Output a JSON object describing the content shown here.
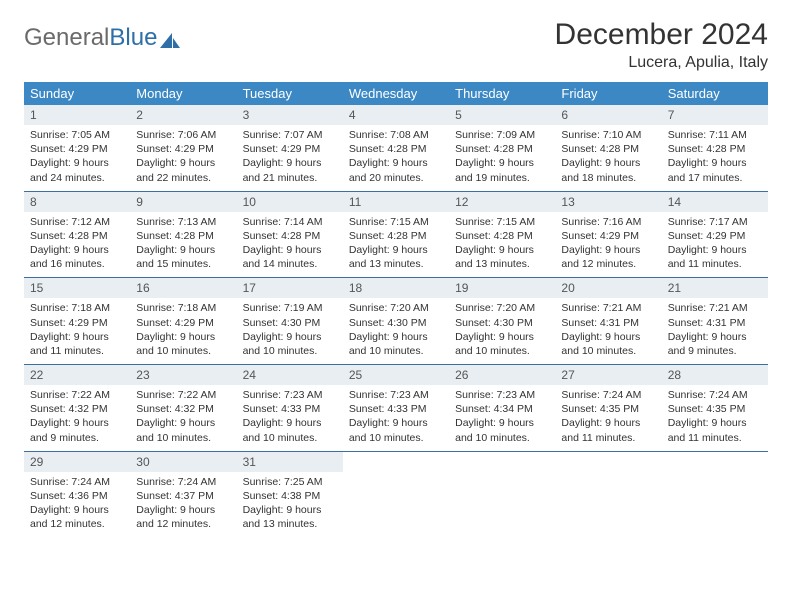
{
  "brand": {
    "gray": "General",
    "blue": "Blue"
  },
  "title": "December 2024",
  "location": "Lucera, Apulia, Italy",
  "colors": {
    "header_bg": "#3b88c4",
    "header_text": "#ffffff",
    "daynum_bg": "#e9eef2",
    "row_border": "#3b6fa0",
    "brand_gray": "#6a6a6a",
    "brand_blue": "#2f6fa8"
  },
  "columns": [
    "Sunday",
    "Monday",
    "Tuesday",
    "Wednesday",
    "Thursday",
    "Friday",
    "Saturday"
  ],
  "weeks": [
    [
      {
        "n": "1",
        "sr": "Sunrise: 7:05 AM",
        "ss": "Sunset: 4:29 PM",
        "d1": "Daylight: 9 hours",
        "d2": "and 24 minutes."
      },
      {
        "n": "2",
        "sr": "Sunrise: 7:06 AM",
        "ss": "Sunset: 4:29 PM",
        "d1": "Daylight: 9 hours",
        "d2": "and 22 minutes."
      },
      {
        "n": "3",
        "sr": "Sunrise: 7:07 AM",
        "ss": "Sunset: 4:29 PM",
        "d1": "Daylight: 9 hours",
        "d2": "and 21 minutes."
      },
      {
        "n": "4",
        "sr": "Sunrise: 7:08 AM",
        "ss": "Sunset: 4:28 PM",
        "d1": "Daylight: 9 hours",
        "d2": "and 20 minutes."
      },
      {
        "n": "5",
        "sr": "Sunrise: 7:09 AM",
        "ss": "Sunset: 4:28 PM",
        "d1": "Daylight: 9 hours",
        "d2": "and 19 minutes."
      },
      {
        "n": "6",
        "sr": "Sunrise: 7:10 AM",
        "ss": "Sunset: 4:28 PM",
        "d1": "Daylight: 9 hours",
        "d2": "and 18 minutes."
      },
      {
        "n": "7",
        "sr": "Sunrise: 7:11 AM",
        "ss": "Sunset: 4:28 PM",
        "d1": "Daylight: 9 hours",
        "d2": "and 17 minutes."
      }
    ],
    [
      {
        "n": "8",
        "sr": "Sunrise: 7:12 AM",
        "ss": "Sunset: 4:28 PM",
        "d1": "Daylight: 9 hours",
        "d2": "and 16 minutes."
      },
      {
        "n": "9",
        "sr": "Sunrise: 7:13 AM",
        "ss": "Sunset: 4:28 PM",
        "d1": "Daylight: 9 hours",
        "d2": "and 15 minutes."
      },
      {
        "n": "10",
        "sr": "Sunrise: 7:14 AM",
        "ss": "Sunset: 4:28 PM",
        "d1": "Daylight: 9 hours",
        "d2": "and 14 minutes."
      },
      {
        "n": "11",
        "sr": "Sunrise: 7:15 AM",
        "ss": "Sunset: 4:28 PM",
        "d1": "Daylight: 9 hours",
        "d2": "and 13 minutes."
      },
      {
        "n": "12",
        "sr": "Sunrise: 7:15 AM",
        "ss": "Sunset: 4:28 PM",
        "d1": "Daylight: 9 hours",
        "d2": "and 13 minutes."
      },
      {
        "n": "13",
        "sr": "Sunrise: 7:16 AM",
        "ss": "Sunset: 4:29 PM",
        "d1": "Daylight: 9 hours",
        "d2": "and 12 minutes."
      },
      {
        "n": "14",
        "sr": "Sunrise: 7:17 AM",
        "ss": "Sunset: 4:29 PM",
        "d1": "Daylight: 9 hours",
        "d2": "and 11 minutes."
      }
    ],
    [
      {
        "n": "15",
        "sr": "Sunrise: 7:18 AM",
        "ss": "Sunset: 4:29 PM",
        "d1": "Daylight: 9 hours",
        "d2": "and 11 minutes."
      },
      {
        "n": "16",
        "sr": "Sunrise: 7:18 AM",
        "ss": "Sunset: 4:29 PM",
        "d1": "Daylight: 9 hours",
        "d2": "and 10 minutes."
      },
      {
        "n": "17",
        "sr": "Sunrise: 7:19 AM",
        "ss": "Sunset: 4:30 PM",
        "d1": "Daylight: 9 hours",
        "d2": "and 10 minutes."
      },
      {
        "n": "18",
        "sr": "Sunrise: 7:20 AM",
        "ss": "Sunset: 4:30 PM",
        "d1": "Daylight: 9 hours",
        "d2": "and 10 minutes."
      },
      {
        "n": "19",
        "sr": "Sunrise: 7:20 AM",
        "ss": "Sunset: 4:30 PM",
        "d1": "Daylight: 9 hours",
        "d2": "and 10 minutes."
      },
      {
        "n": "20",
        "sr": "Sunrise: 7:21 AM",
        "ss": "Sunset: 4:31 PM",
        "d1": "Daylight: 9 hours",
        "d2": "and 10 minutes."
      },
      {
        "n": "21",
        "sr": "Sunrise: 7:21 AM",
        "ss": "Sunset: 4:31 PM",
        "d1": "Daylight: 9 hours",
        "d2": "and 9 minutes."
      }
    ],
    [
      {
        "n": "22",
        "sr": "Sunrise: 7:22 AM",
        "ss": "Sunset: 4:32 PM",
        "d1": "Daylight: 9 hours",
        "d2": "and 9 minutes."
      },
      {
        "n": "23",
        "sr": "Sunrise: 7:22 AM",
        "ss": "Sunset: 4:32 PM",
        "d1": "Daylight: 9 hours",
        "d2": "and 10 minutes."
      },
      {
        "n": "24",
        "sr": "Sunrise: 7:23 AM",
        "ss": "Sunset: 4:33 PM",
        "d1": "Daylight: 9 hours",
        "d2": "and 10 minutes."
      },
      {
        "n": "25",
        "sr": "Sunrise: 7:23 AM",
        "ss": "Sunset: 4:33 PM",
        "d1": "Daylight: 9 hours",
        "d2": "and 10 minutes."
      },
      {
        "n": "26",
        "sr": "Sunrise: 7:23 AM",
        "ss": "Sunset: 4:34 PM",
        "d1": "Daylight: 9 hours",
        "d2": "and 10 minutes."
      },
      {
        "n": "27",
        "sr": "Sunrise: 7:24 AM",
        "ss": "Sunset: 4:35 PM",
        "d1": "Daylight: 9 hours",
        "d2": "and 11 minutes."
      },
      {
        "n": "28",
        "sr": "Sunrise: 7:24 AM",
        "ss": "Sunset: 4:35 PM",
        "d1": "Daylight: 9 hours",
        "d2": "and 11 minutes."
      }
    ],
    [
      {
        "n": "29",
        "sr": "Sunrise: 7:24 AM",
        "ss": "Sunset: 4:36 PM",
        "d1": "Daylight: 9 hours",
        "d2": "and 12 minutes."
      },
      {
        "n": "30",
        "sr": "Sunrise: 7:24 AM",
        "ss": "Sunset: 4:37 PM",
        "d1": "Daylight: 9 hours",
        "d2": "and 12 minutes."
      },
      {
        "n": "31",
        "sr": "Sunrise: 7:25 AM",
        "ss": "Sunset: 4:38 PM",
        "d1": "Daylight: 9 hours",
        "d2": "and 13 minutes."
      },
      null,
      null,
      null,
      null
    ]
  ]
}
